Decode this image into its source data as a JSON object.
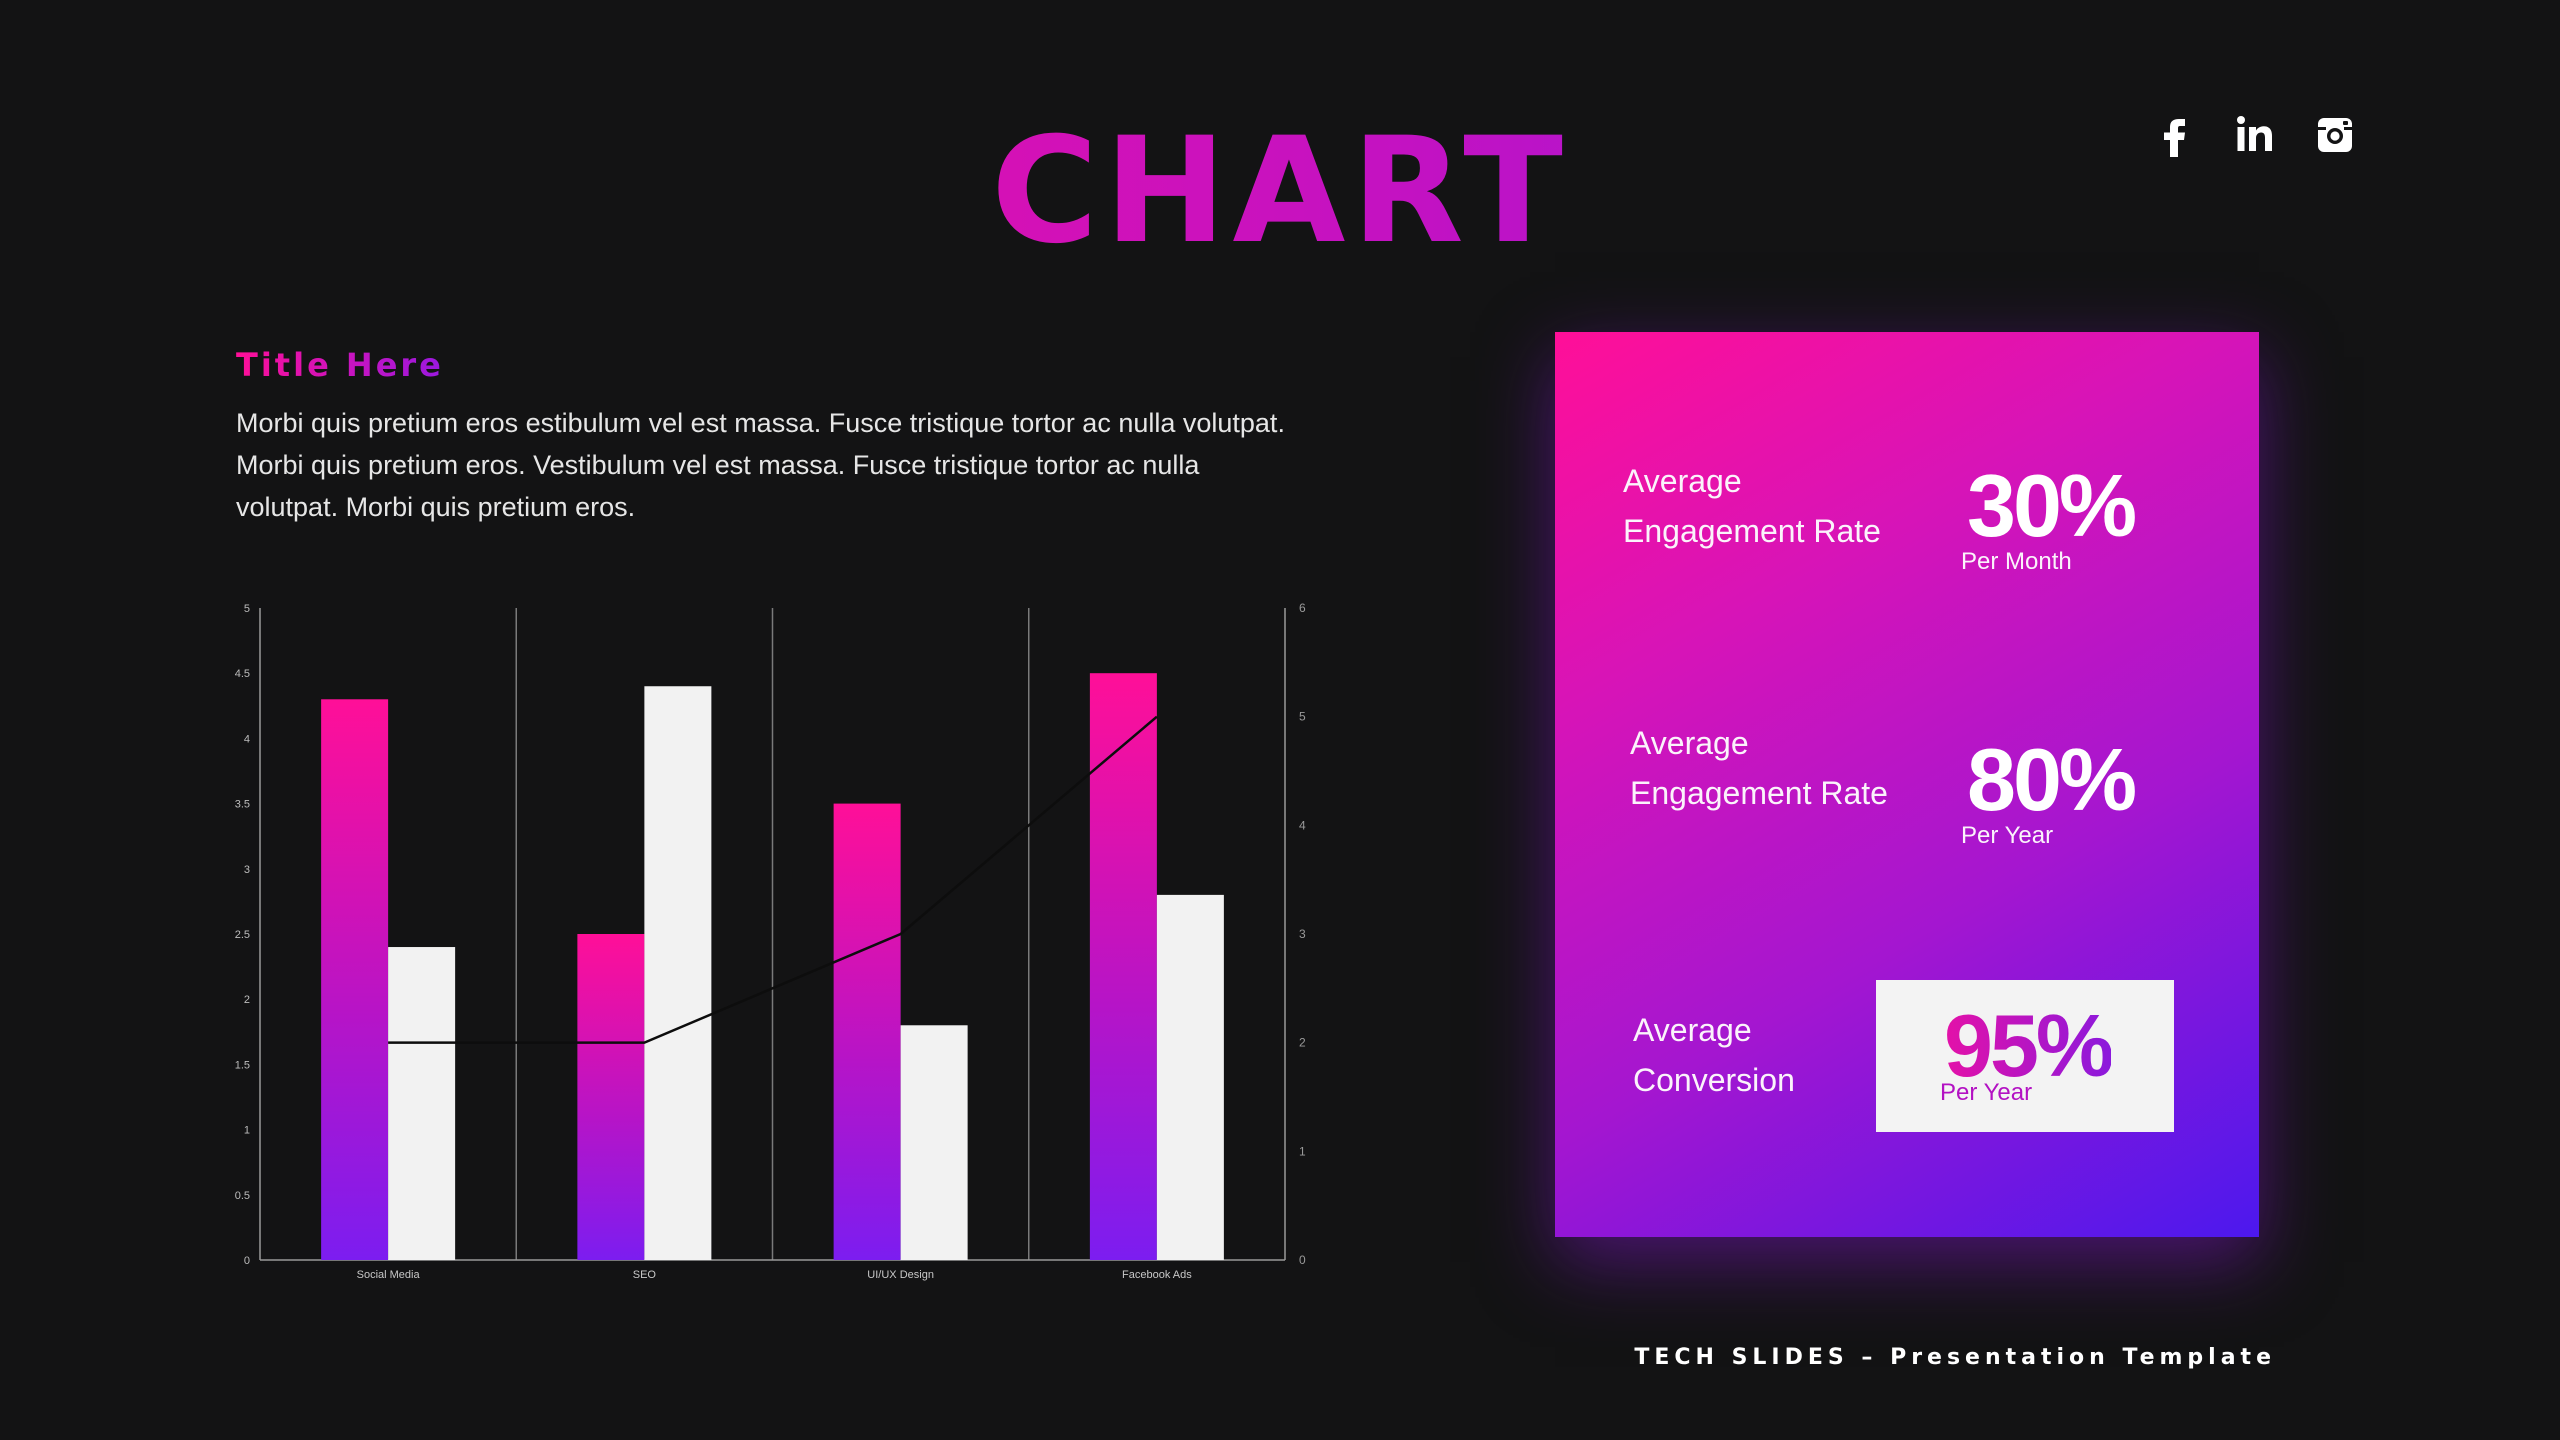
{
  "page": {
    "title": "CHART",
    "footer": "TECH SLIDES – Presentation Template"
  },
  "socials": [
    {
      "name": "facebook-icon",
      "glyph": "f"
    },
    {
      "name": "linkedin-icon",
      "glyph": "in"
    },
    {
      "name": "instagram-icon",
      "glyph": "instagram"
    }
  ],
  "section": {
    "title": "Title Here",
    "body": "Morbi quis pretium eros estibulum vel est massa. Fusce tristique tortor ac nulla volutpat. Morbi quis pretium eros.  Vestibulum vel est massa. Fusce tristique tortor ac nulla volutpat.  Morbi quis pretium eros."
  },
  "stats": [
    {
      "label1": "Average",
      "label2": "Engagement Rate",
      "value": "30%",
      "sub": "Per Month"
    },
    {
      "label1": "Average",
      "label2": "Engagement Rate",
      "value": "80%",
      "sub": "Per Year"
    },
    {
      "label1": "Average",
      "label2": "Conversion",
      "value": "95%",
      "sub": "Per Year"
    }
  ],
  "colors": {
    "accent_pink": "#ff0f98",
    "accent_purple": "#7c1df0",
    "background": "#131314",
    "light_bar": "#f2f2f2",
    "line": "#0d0d0d"
  },
  "chart_data": {
    "type": "bar",
    "categories": [
      "Social Media",
      "SEO",
      "UI/UX Design",
      "Facebook Ads"
    ],
    "series": [
      {
        "values": [
          4.3,
          2.5,
          3.5,
          4.5
        ],
        "style": "gradient-pink-purple",
        "axis": "left"
      },
      {
        "values": [
          2.4,
          4.4,
          1.8,
          2.8
        ],
        "style": "light",
        "axis": "left"
      },
      {
        "type": "line",
        "values": [
          2,
          2,
          3,
          5
        ],
        "axis": "right"
      }
    ],
    "ylim": [
      0,
      5
    ],
    "yticks": [
      "0",
      "0.5",
      "1",
      "1.5",
      "2",
      "2.5",
      "3",
      "3.5",
      "4",
      "4.5",
      "5"
    ],
    "y2lim": [
      0,
      6
    ],
    "y2ticks": [
      "0",
      "1",
      "2",
      "3",
      "4",
      "5",
      "6"
    ],
    "grid": "vertical category separators",
    "legend": "none"
  }
}
